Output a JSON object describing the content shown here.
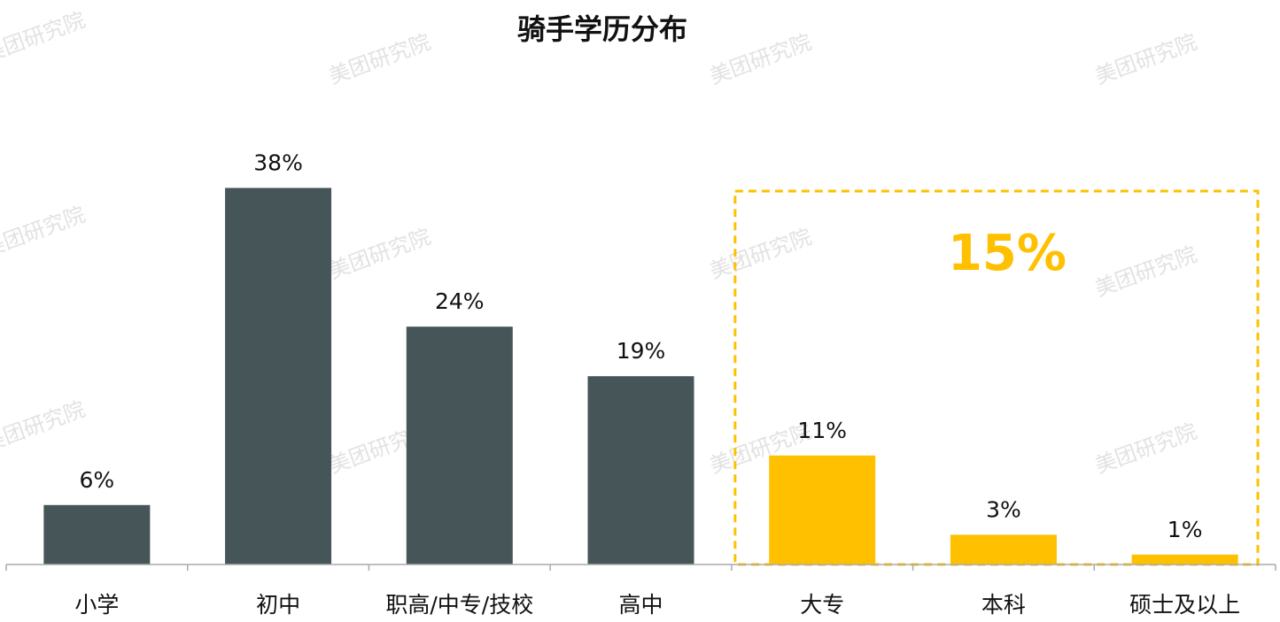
{
  "chart_data": {
    "type": "bar",
    "title": "骑手学历分布",
    "categories": [
      "小学",
      "初中",
      "职高/中专/技校",
      "高中",
      "大专",
      "本科",
      "硕士及以上"
    ],
    "values": [
      6,
      38,
      24,
      19,
      11,
      3,
      1
    ],
    "value_labels": [
      "6%",
      "38%",
      "24%",
      "19%",
      "11%",
      "3%",
      "1%"
    ],
    "unit": "%",
    "ylim": [
      0,
      40
    ],
    "grid": false,
    "legend": "none",
    "highlight": {
      "categories": [
        "大专",
        "本科",
        "硕士及以上"
      ],
      "label": "15%",
      "value": 15
    }
  },
  "colors": {
    "base_bar": "#465557",
    "highlight_bar": "#FFC000",
    "highlight_box": "#FFC000",
    "axis": "#aaaaaa",
    "watermark": "#e2e2e2"
  },
  "watermark": "美团研究院"
}
